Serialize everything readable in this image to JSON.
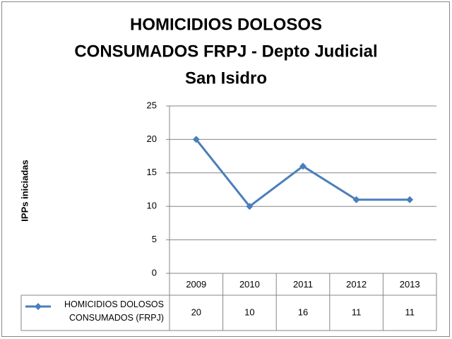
{
  "chart_data": {
    "type": "line",
    "title": [
      "HOMICIDIOS DOLOSOS",
      "CONSUMADOS FRPJ - Depto Judicial",
      "San Isidro"
    ],
    "y_label": "IPPs iniciadas",
    "categories": [
      "2009",
      "2010",
      "2011",
      "2012",
      "2013"
    ],
    "series": [
      {
        "name": "HOMICIDIOS DOLOSOS CONSUMADOS (FRPJ)",
        "color": "#4a7ebb",
        "values": [
          20,
          10,
          16,
          11,
          11
        ]
      }
    ],
    "ylim": [
      0,
      25
    ],
    "yticks": [
      0,
      5,
      10,
      15,
      20,
      25
    ],
    "grid": true,
    "data_table": true
  }
}
